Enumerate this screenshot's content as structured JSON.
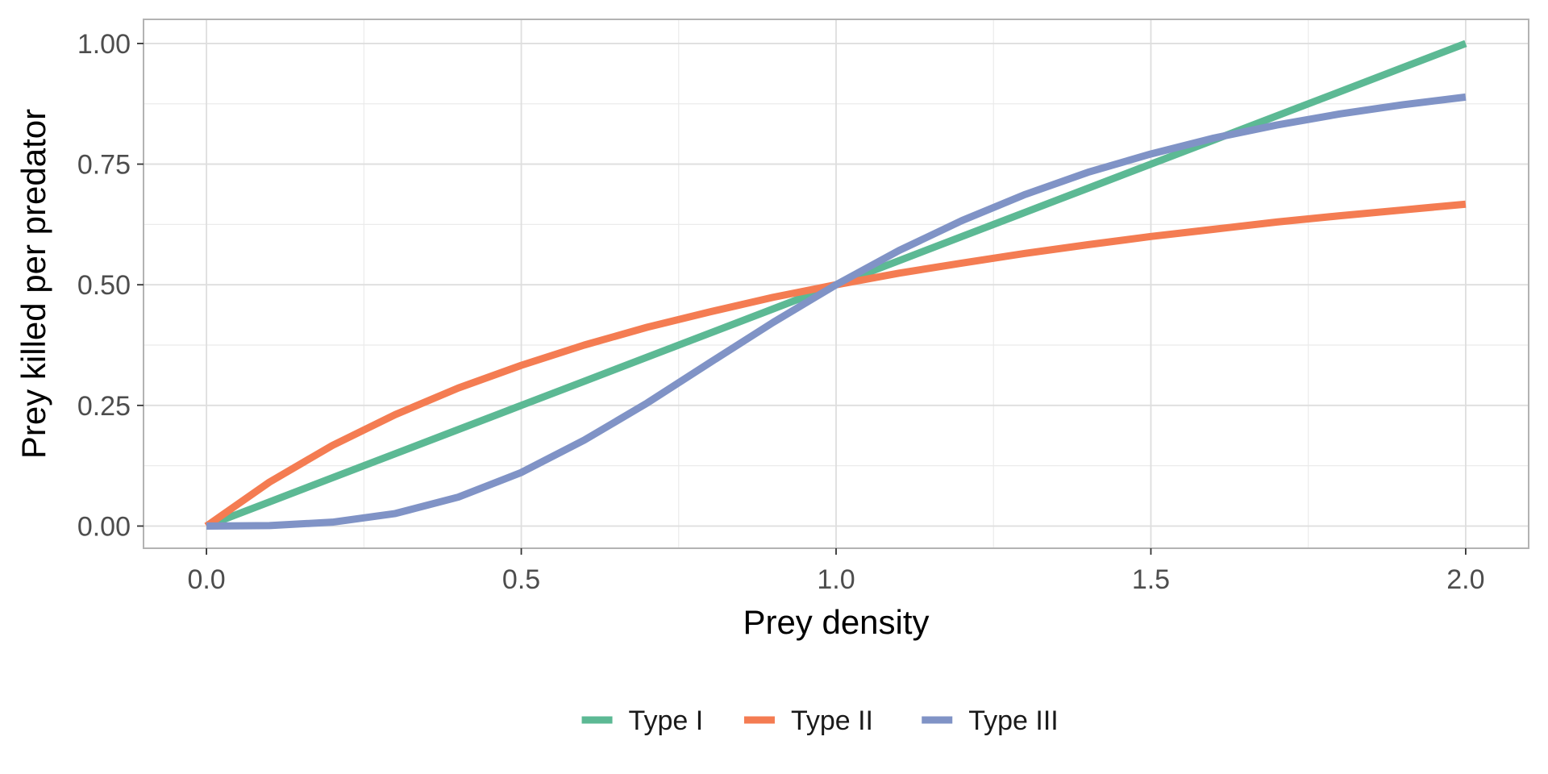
{
  "chart_data": {
    "type": "line",
    "xlabel": "Prey density",
    "ylabel": "Prey killed per predator",
    "xlim": [
      -0.1,
      2.1
    ],
    "ylim": [
      -0.046,
      1.05
    ],
    "x_ticks": [
      0.0,
      0.5,
      1.0,
      1.5,
      2.0
    ],
    "x_tick_labels": [
      "0.0",
      "0.5",
      "1.0",
      "1.5",
      "2.0"
    ],
    "x_minor_ticks": [
      0.25,
      0.75,
      1.25,
      1.75
    ],
    "y_ticks": [
      0.0,
      0.25,
      0.5,
      0.75,
      1.0
    ],
    "y_tick_labels": [
      "0.00",
      "0.25",
      "0.50",
      "0.75",
      "1.00"
    ],
    "y_minor_ticks": [
      0.125,
      0.375,
      0.625,
      0.875
    ],
    "grid": true,
    "legend_position": "bottom",
    "x": [
      0.0,
      0.1,
      0.2,
      0.3,
      0.4,
      0.5,
      0.6,
      0.7,
      0.8,
      0.9,
      1.0,
      1.1,
      1.2,
      1.3,
      1.4,
      1.5,
      1.6,
      1.7,
      1.8,
      1.9,
      2.0
    ],
    "series": [
      {
        "name": "Type I",
        "color": "#5cb994",
        "values": [
          0.0,
          0.05,
          0.1,
          0.15,
          0.2,
          0.25,
          0.3,
          0.35,
          0.4,
          0.45,
          0.5,
          0.55,
          0.6,
          0.65,
          0.7,
          0.75,
          0.8,
          0.85,
          0.9,
          0.95,
          1.0
        ]
      },
      {
        "name": "Type II",
        "color": "#f47c52",
        "values": [
          0.0,
          0.091,
          0.167,
          0.231,
          0.286,
          0.333,
          0.375,
          0.412,
          0.444,
          0.474,
          0.5,
          0.524,
          0.545,
          0.565,
          0.583,
          0.6,
          0.615,
          0.63,
          0.643,
          0.655,
          0.667
        ]
      },
      {
        "name": "Type III",
        "color": "#8093c6",
        "values": [
          0.0,
          0.001,
          0.008,
          0.026,
          0.06,
          0.111,
          0.178,
          0.255,
          0.339,
          0.422,
          0.5,
          0.571,
          0.633,
          0.687,
          0.733,
          0.771,
          0.804,
          0.831,
          0.854,
          0.873,
          0.889
        ]
      }
    ]
  }
}
